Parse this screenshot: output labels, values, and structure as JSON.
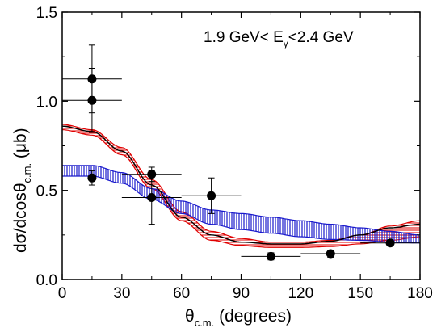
{
  "chart_data": {
    "type": "scatter",
    "annotation": {
      "main": "1.9 GeV< E",
      "sub": "γ",
      "tail": "<2.4 GeV"
    },
    "xlabel": {
      "symbol": "θ",
      "sub": "c.m.",
      "rest": " (degrees)"
    },
    "ylabel": {
      "main": "dσ/dcosθ",
      "sub": "c.m.",
      "rest": " (μb)"
    },
    "xlim": [
      0,
      180
    ],
    "ylim": [
      0,
      1.5
    ],
    "xticks": [
      0,
      30,
      60,
      90,
      120,
      150,
      180
    ],
    "xtick_labels": [
      "0",
      "30",
      "60",
      "90",
      "120",
      "150",
      "180"
    ],
    "yticks": [
      0.0,
      0.5,
      1.0,
      1.5
    ],
    "ytick_labels": [
      "0.0",
      "0.5",
      "1.0",
      "1.5"
    ],
    "grid": false,
    "points": [
      {
        "x": 15,
        "y": 1.125,
        "xerr": 15,
        "yerr": 0.19
      },
      {
        "x": 15,
        "y": 1.005,
        "xerr": 15,
        "yerr": 0.18
      },
      {
        "x": 15,
        "y": 0.57,
        "xerr": 0,
        "yerr": 0.04
      },
      {
        "x": 45,
        "y": 0.59,
        "xerr": 15,
        "yerr": 0.04
      },
      {
        "x": 45,
        "y": 0.46,
        "xerr": 15,
        "yerr": 0.15
      },
      {
        "x": 75,
        "y": 0.47,
        "xerr": 15,
        "yerr": 0.1
      },
      {
        "x": 105,
        "y": 0.13,
        "xerr": 15,
        "yerr": 0.02
      },
      {
        "x": 135,
        "y": 0.145,
        "xerr": 15,
        "yerr": 0.02
      },
      {
        "x": 165,
        "y": 0.205,
        "xerr": 15,
        "yerr": 0.01
      }
    ],
    "bands": [
      {
        "color": "#e00000",
        "hatch": "horizontal",
        "x": [
          0,
          15,
          30,
          45,
          60,
          75,
          90,
          105,
          120,
          135,
          150,
          165,
          180
        ],
        "lower": [
          0.84,
          0.81,
          0.7,
          0.51,
          0.33,
          0.22,
          0.19,
          0.18,
          0.18,
          0.185,
          0.2,
          0.22,
          0.24
        ],
        "upper": [
          0.87,
          0.84,
          0.74,
          0.56,
          0.38,
          0.27,
          0.23,
          0.21,
          0.21,
          0.22,
          0.25,
          0.3,
          0.33
        ]
      },
      {
        "color": "#1a1acc",
        "hatch": "vertical",
        "x": [
          0,
          15,
          30,
          45,
          60,
          75,
          90,
          105,
          120,
          135,
          150,
          165,
          180
        ],
        "lower": [
          0.58,
          0.58,
          0.54,
          0.45,
          0.37,
          0.31,
          0.28,
          0.26,
          0.24,
          0.225,
          0.22,
          0.21,
          0.205
        ],
        "upper": [
          0.64,
          0.64,
          0.6,
          0.51,
          0.44,
          0.39,
          0.37,
          0.35,
          0.33,
          0.31,
          0.29,
          0.27,
          0.25
        ]
      }
    ],
    "curve": {
      "color": "#000000",
      "x": [
        0,
        15,
        30,
        45,
        60,
        75,
        90,
        105,
        120,
        135,
        150,
        165,
        180
      ],
      "y": [
        0.86,
        0.83,
        0.72,
        0.53,
        0.35,
        0.25,
        0.21,
        0.2,
        0.2,
        0.215,
        0.25,
        0.29,
        0.31
      ]
    }
  }
}
